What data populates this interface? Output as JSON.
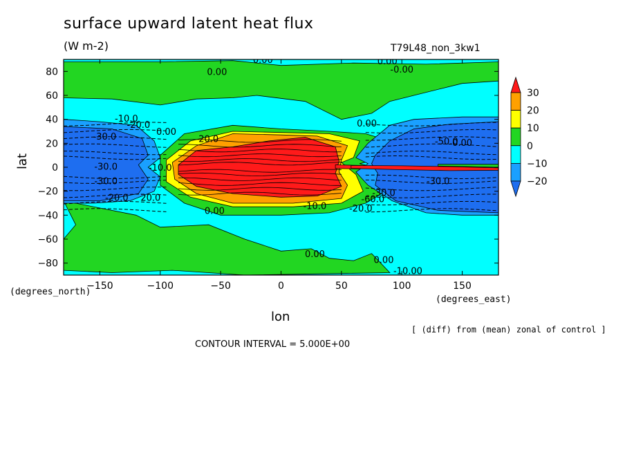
{
  "title": "surface upward latent heat flux",
  "units": "(W m-2)",
  "run_name": "T79L48_non_3kw1",
  "note": "[ (diff) from (mean) zonal of control ]",
  "contour_interval": "CONTOUR INTERVAL = 5.000E+00",
  "colors": {
    "lt_m20": "#1e6ef0",
    "m20_m10": "#1aa0ff",
    "m10_0": "#00ffff",
    "0_10": "#22d622",
    "10_20": "#ffff00",
    "20_30": "#ffa000",
    "gt_30": "#ff1a1a"
  },
  "chart_data": {
    "type": "heatmap",
    "subtype": "filled-contour map",
    "xlabel": "lon",
    "ylabel": "lat",
    "x_unit": "(degrees_east)",
    "y_unit": "(degrees_north)",
    "xlim": [
      -180,
      180
    ],
    "ylim": [
      -90,
      90
    ],
    "x_ticks": [
      -150,
      -100,
      -50,
      0,
      50,
      100,
      150
    ],
    "y_ticks": [
      -80,
      -60,
      -40,
      -20,
      0,
      20,
      40,
      60,
      80
    ],
    "colorbar": {
      "levels": [
        -20,
        -10,
        0,
        10,
        20,
        30
      ],
      "colors": [
        "#1e6ef0",
        "#1aa0ff",
        "#00ffff",
        "#22d622",
        "#ffff00",
        "#ffa000",
        "#ff1a1a"
      ]
    },
    "contour_labels": [
      "0.00",
      "0.00",
      "-0.00",
      "0.00",
      "-10.0",
      "-20.0",
      "0.00",
      "-30.0",
      "20.0",
      "-30.0",
      "-10.0",
      "-30.0",
      "-20.0",
      "20.0",
      "-10.0",
      "0.00",
      "-20.0",
      "0.00",
      "-30.0",
      "-30.0",
      "-60.0",
      "-50.0",
      "0.00",
      "0.00",
      "0.00",
      "-10.00"
    ]
  }
}
